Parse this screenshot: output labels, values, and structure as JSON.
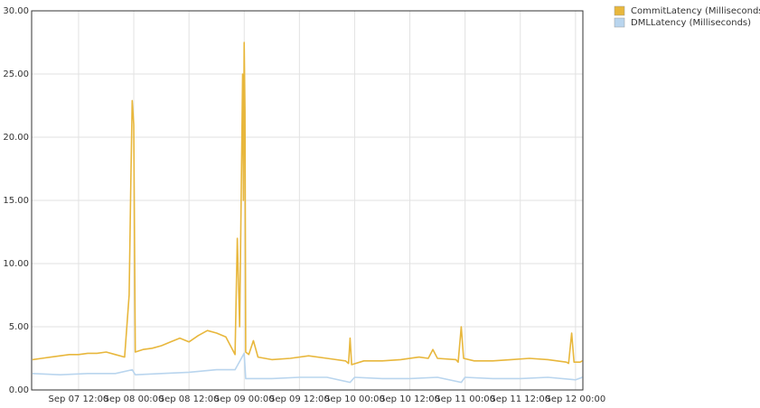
{
  "chart_data": {
    "type": "line",
    "xlim": [
      "Sep 07 01:48",
      "Sep 12 01:36"
    ],
    "xticks": [
      "Sep 07 12:00",
      "Sep 08 00:00",
      "Sep 08 12:00",
      "Sep 09 00:00",
      "Sep 09 12:00",
      "Sep 10 00:00",
      "Sep 10 12:00",
      "Sep 11 00:00",
      "Sep 11 12:00",
      "Sep 12 00:00"
    ],
    "ylim": [
      0,
      30
    ],
    "yticks": [
      {
        "value": 0,
        "label": "0.00"
      },
      {
        "value": 5,
        "label": "5.00"
      },
      {
        "value": 10,
        "label": "10.00"
      },
      {
        "value": 15,
        "label": "15.00"
      },
      {
        "value": 20,
        "label": "20.00"
      },
      {
        "value": 25,
        "label": "25.00"
      },
      {
        "value": 30,
        "label": "30.00"
      }
    ],
    "grid": true,
    "legend": "right",
    "series": [
      {
        "name": "CommitLatency (Milliseconds)",
        "color": "#e8b73c",
        "x": [
          "Sep 07 02:00",
          "Sep 07 04:00",
          "Sep 07 06:00",
          "Sep 07 08:00",
          "Sep 07 10:00",
          "Sep 07 12:00",
          "Sep 07 14:00",
          "Sep 07 16:00",
          "Sep 07 18:00",
          "Sep 07 20:00",
          "Sep 07 22:00",
          "Sep 07 23:00",
          "Sep 07 23:20",
          "Sep 07 23:40",
          "Sep 08 00:00",
          "Sep 08 00:10",
          "Sep 08 00:20",
          "Sep 08 02:00",
          "Sep 08 04:00",
          "Sep 08 06:00",
          "Sep 08 08:00",
          "Sep 08 10:00",
          "Sep 08 12:00",
          "Sep 08 14:00",
          "Sep 08 16:00",
          "Sep 08 18:00",
          "Sep 08 20:00",
          "Sep 08 22:00",
          "Sep 08 22:30",
          "Sep 08 23:00",
          "Sep 08 23:40",
          "Sep 08 23:50",
          "Sep 09 00:00",
          "Sep 09 00:10",
          "Sep 09 00:20",
          "Sep 09 01:00",
          "Sep 09 02:00",
          "Sep 09 03:00",
          "Sep 09 06:00",
          "Sep 09 10:00",
          "Sep 09 14:00",
          "Sep 09 18:00",
          "Sep 09 22:00",
          "Sep 09 22:40",
          "Sep 09 23:00",
          "Sep 09 23:20",
          "Sep 10 02:00",
          "Sep 10 06:00",
          "Sep 10 10:00",
          "Sep 10 14:00",
          "Sep 10 16:00",
          "Sep 10 17:00",
          "Sep 10 18:00",
          "Sep 10 22:00",
          "Sep 10 22:30",
          "Sep 10 23:10",
          "Sep 10 23:40",
          "Sep 11 02:00",
          "Sep 11 06:00",
          "Sep 11 10:00",
          "Sep 11 14:00",
          "Sep 11 18:00",
          "Sep 11 22:00",
          "Sep 11 22:30",
          "Sep 11 23:10",
          "Sep 11 23:40",
          "Sep 12 01:00",
          "Sep 12 01:30"
        ],
        "values": [
          2.4,
          2.5,
          2.6,
          2.7,
          2.8,
          2.8,
          2.9,
          2.9,
          3.0,
          2.8,
          2.6,
          7.5,
          15.6,
          22.9,
          21.0,
          11.5,
          3.0,
          3.2,
          3.3,
          3.5,
          3.8,
          4.1,
          3.8,
          4.3,
          4.7,
          4.5,
          4.2,
          2.8,
          12.0,
          5.0,
          25.0,
          15.0,
          27.5,
          22.0,
          3.0,
          2.8,
          3.9,
          2.6,
          2.4,
          2.5,
          2.7,
          2.5,
          2.3,
          2.1,
          4.1,
          2.0,
          2.3,
          2.3,
          2.4,
          2.6,
          2.5,
          3.2,
          2.5,
          2.4,
          2.2,
          5.0,
          2.5,
          2.3,
          2.3,
          2.4,
          2.5,
          2.4,
          2.2,
          2.1,
          4.5,
          2.2,
          2.2,
          2.3
        ]
      },
      {
        "name": "DMLLatency (Milliseconds)",
        "color": "#b9d5ee",
        "x": [
          "Sep 07 02:00",
          "Sep 07 08:00",
          "Sep 07 14:00",
          "Sep 07 20:00",
          "Sep 07 23:40",
          "Sep 08 00:20",
          "Sep 08 06:00",
          "Sep 08 12:00",
          "Sep 08 18:00",
          "Sep 08 22:00",
          "Sep 09 00:00",
          "Sep 09 00:20",
          "Sep 09 06:00",
          "Sep 09 12:00",
          "Sep 09 18:00",
          "Sep 09 23:00",
          "Sep 10 00:00",
          "Sep 10 06:00",
          "Sep 10 12:00",
          "Sep 10 18:00",
          "Sep 10 23:10",
          "Sep 11 00:00",
          "Sep 11 06:00",
          "Sep 11 12:00",
          "Sep 11 18:00",
          "Sep 12 00:00",
          "Sep 12 01:30"
        ],
        "values": [
          1.3,
          1.2,
          1.3,
          1.3,
          1.6,
          1.2,
          1.3,
          1.4,
          1.6,
          1.6,
          2.9,
          0.9,
          0.9,
          1.0,
          1.0,
          0.6,
          1.0,
          0.9,
          0.9,
          1.0,
          0.6,
          1.0,
          0.9,
          0.9,
          1.0,
          0.8,
          1.0
        ]
      }
    ]
  }
}
